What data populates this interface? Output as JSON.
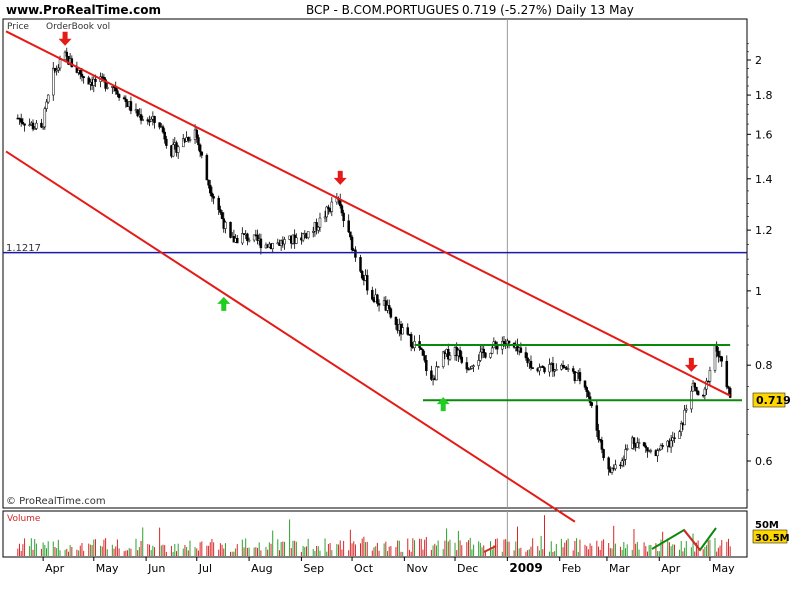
{
  "header": {
    "site": "www.ProRealTime.com",
    "symbol": "BCP - B.COM.PORTUGUES",
    "quote": "0.719 (-5.27%)",
    "period": "Daily",
    "date": "13 May"
  },
  "panel_labels": {
    "price": "Price",
    "orderbook": "OrderBook vol",
    "copyright": "© ProRealTime.com",
    "volume": "Volume"
  },
  "colors": {
    "channel": "#e41b17",
    "horizontal": "#1a1aa6",
    "support": "#0a8a0a",
    "down_arrow": "#e41b17",
    "up_arrow": "#22cc22",
    "candle": "#000000",
    "volume_up": "#2ca02c",
    "volume_down": "#d62728",
    "last_price_bg": "#ffd700"
  },
  "chart_data": {
    "type": "candlestick",
    "title": "BCP - B.COM.PORTUGUES",
    "period": "Daily",
    "last_price": "0.719",
    "change": "-5.27%",
    "yscale": "log",
    "ylim": [
      0.5,
      2.2
    ],
    "yticks": [
      "2",
      "1.8",
      "1.6",
      "1.4",
      "1.2",
      "1",
      "0.8",
      "0.6"
    ],
    "x_labels": [
      "Apr",
      "May",
      "Jun",
      "Jul",
      "Aug",
      "Sep",
      "Oct",
      "Nov",
      "Dec",
      "2009",
      "Feb",
      "Mar",
      "Apr",
      "May"
    ],
    "close_series": {
      "x": [
        "2008-03-17",
        "2008-03-31",
        "2008-04-07",
        "2008-04-14",
        "2008-04-21",
        "2008-04-28",
        "2008-05-12",
        "2008-05-26",
        "2008-06-09",
        "2008-06-16",
        "2008-06-30",
        "2008-07-07",
        "2008-07-14",
        "2008-07-21",
        "2008-07-28",
        "2008-08-11",
        "2008-08-25",
        "2008-09-08",
        "2008-09-22",
        "2008-09-29",
        "2008-10-06",
        "2008-10-13",
        "2008-10-20",
        "2008-10-27",
        "2008-11-10",
        "2008-11-17",
        "2008-11-24",
        "2008-12-01",
        "2008-12-08",
        "2008-12-15",
        "2008-12-29",
        "2009-01-05",
        "2009-01-19",
        "2009-02-02",
        "2009-02-16",
        "2009-02-23",
        "2009-03-02",
        "2009-03-09",
        "2009-03-16",
        "2009-03-30",
        "2009-04-13",
        "2009-04-20",
        "2009-04-27",
        "2009-05-04",
        "2009-05-11",
        "2009-05-13"
      ],
      "y": [
        1.68,
        1.62,
        1.92,
        2.02,
        1.94,
        1.88,
        1.86,
        1.7,
        1.65,
        1.52,
        1.62,
        1.4,
        1.28,
        1.16,
        1.18,
        1.15,
        1.16,
        1.2,
        1.32,
        1.18,
        1.07,
        0.98,
        0.96,
        0.9,
        0.84,
        0.76,
        0.82,
        0.84,
        0.8,
        0.82,
        0.86,
        0.84,
        0.79,
        0.8,
        0.76,
        0.66,
        0.58,
        0.6,
        0.64,
        0.61,
        0.65,
        0.75,
        0.72,
        0.85,
        0.76,
        0.719
      ]
    },
    "reference_level": {
      "label": "1.1217",
      "value": 1.1217
    },
    "support_levels": [
      0.85,
      0.72
    ],
    "channel_lines": [
      {
        "from": {
          "x": "2008-03-10",
          "y": 2.18
        },
        "to": {
          "x": "2009-05-13",
          "y": 0.73
        }
      },
      {
        "from": {
          "x": "2008-03-10",
          "y": 1.52
        },
        "to": {
          "x": "2009-02-10",
          "y": 0.5
        }
      }
    ],
    "arrows": [
      {
        "dir": "down",
        "x": "2008-04-14",
        "y": 2.05
      },
      {
        "dir": "down",
        "x": "2008-09-24",
        "y": 1.35
      },
      {
        "dir": "down",
        "x": "2009-04-20",
        "y": 0.77
      },
      {
        "dir": "up",
        "x": "2008-07-17",
        "y": 1.0
      },
      {
        "dir": "up",
        "x": "2008-11-24",
        "y": 0.74
      }
    ],
    "volume": {
      "label": "Volume",
      "axis_label": "50M",
      "last": "30.5M"
    }
  }
}
